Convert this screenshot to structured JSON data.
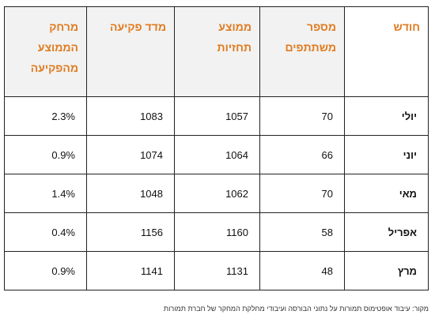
{
  "table": {
    "headers": {
      "gap": "מרחק\nהממוצע\nמהפקיעה",
      "index": "מדד פקיעה",
      "avg": "ממוצע\nתחזיות",
      "participants": "מספר\nמשתתפים",
      "month": "חודש"
    },
    "rows": [
      {
        "gap": "2.3%",
        "index": "1083",
        "avg": "1057",
        "participants": "70",
        "month": "יולי"
      },
      {
        "gap": "0.9%",
        "index": "1074",
        "avg": "1064",
        "participants": "66",
        "month": "יוני"
      },
      {
        "gap": "1.4%",
        "index": "1048",
        "avg": "1062",
        "participants": "70",
        "month": "מאי"
      },
      {
        "gap": "0.4%",
        "index": "1156",
        "avg": "1160",
        "participants": "58",
        "month": "אפריל"
      },
      {
        "gap": "0.9%",
        "index": "1141",
        "avg": "1131",
        "participants": "48",
        "month": "מרץ"
      }
    ]
  },
  "source": "מקור: עיבוד אופטימוס תמורות על נתוני הבורסה ועיבודי מחלקת המחקר של חברת תמורות",
  "colors": {
    "header_text": "#e07b1f",
    "header_bg": "#f2f2f2",
    "border": "#222222"
  }
}
